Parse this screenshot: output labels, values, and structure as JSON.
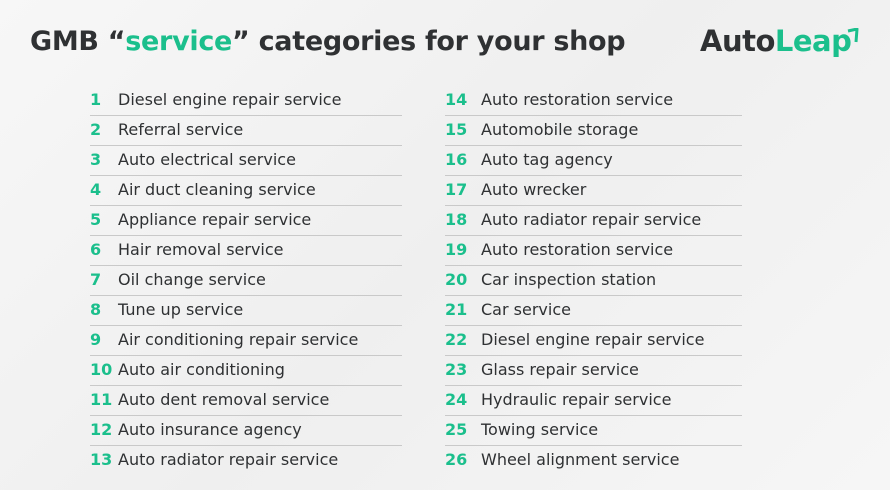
{
  "header": {
    "title_parts": [
      "GMB “",
      "service",
      "” categories for your shop"
    ],
    "logo_parts": [
      "Auto",
      "Leap"
    ]
  },
  "columns": [
    {
      "items": [
        {
          "number": "1",
          "label": "Diesel engine repair service"
        },
        {
          "number": "2",
          "label": "Referral service"
        },
        {
          "number": "3",
          "label": "Auto electrical service"
        },
        {
          "number": "4",
          "label": "Air duct cleaning service"
        },
        {
          "number": "5",
          "label": "Appliance repair service"
        },
        {
          "number": "6",
          "label": "Hair removal service"
        },
        {
          "number": "7",
          "label": "Oil change service"
        },
        {
          "number": "8",
          "label": "Tune up service"
        },
        {
          "number": "9",
          "label": "Air conditioning repair service"
        },
        {
          "number": "10",
          "label": "Auto air conditioning"
        },
        {
          "number": "11",
          "label": "Auto dent removal service"
        },
        {
          "number": "12",
          "label": "Auto insurance agency"
        },
        {
          "number": "13",
          "label": "Auto radiator repair service"
        }
      ]
    },
    {
      "items": [
        {
          "number": "14",
          "label": "Auto restoration service"
        },
        {
          "number": "15",
          "label": "Automobile storage"
        },
        {
          "number": "16",
          "label": "Auto tag agency"
        },
        {
          "number": "17",
          "label": "Auto wrecker"
        },
        {
          "number": "18",
          "label": "Auto radiator repair service"
        },
        {
          "number": "19",
          "label": "Auto restoration service"
        },
        {
          "number": "20",
          "label": "Car inspection station"
        },
        {
          "number": "21",
          "label": "Car service"
        },
        {
          "number": "22",
          "label": "Diesel engine repair service"
        },
        {
          "number": "23",
          "label": "Glass repair service"
        },
        {
          "number": "24",
          "label": "Hydraulic repair service"
        },
        {
          "number": "25",
          "label": "Towing service"
        },
        {
          "number": "26",
          "label": "Wheel alignment service"
        }
      ]
    }
  ]
}
